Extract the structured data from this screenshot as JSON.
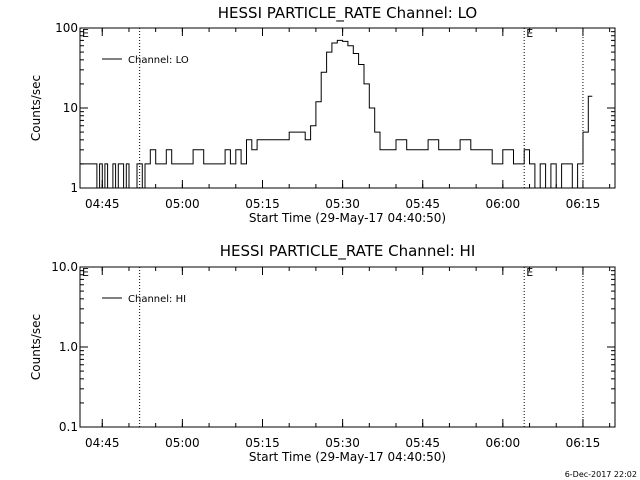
{
  "chart_data": [
    {
      "type": "line",
      "title": "HESSI PARTICLE_RATE Channel: LO",
      "xlabel": "Start Time (29-May-17 04:40:50)",
      "ylabel": "Counts/sec",
      "yscale": "log",
      "ylim": [
        1,
        100
      ],
      "ytick_labels": [
        "1",
        "10",
        "100"
      ],
      "ytick_values": [
        1,
        10,
        100
      ],
      "xlim": [
        "04:40:50",
        "06:21:00"
      ],
      "xtick_labels": [
        "04:45",
        "05:00",
        "05:15",
        "05:30",
        "05:45",
        "06:00",
        "06:15"
      ],
      "xtick_values": [
        "04:45",
        "05:00",
        "05:15",
        "05:30",
        "05:45",
        "06:00",
        "06:15"
      ],
      "event_lines": [
        {
          "time": "04:52",
          "label": ""
        },
        {
          "time": "06:04",
          "label": "E"
        },
        {
          "time": "06:15",
          "label": ""
        }
      ],
      "corner_label": "E",
      "legend_position": "top-left",
      "series": [
        {
          "name": "Channel: LO",
          "x": [
            "04:40:50",
            "04:42:00",
            "04:43:00",
            "04:44:00",
            "04:44:30",
            "04:45:00",
            "04:45:30",
            "04:46:00",
            "04:46:30",
            "04:47:00",
            "04:47:30",
            "04:48:00",
            "04:49:00",
            "04:49:30",
            "04:50:00",
            "04:51:00",
            "04:51:30",
            "04:52:30",
            "04:53:00",
            "04:54:00",
            "04:55:00",
            "04:56:00",
            "04:57:00",
            "04:58:00",
            "04:59:00",
            "05:00:00",
            "05:02:00",
            "05:04:00",
            "05:06:00",
            "05:08:00",
            "05:09:00",
            "05:10:00",
            "05:11:00",
            "05:12:00",
            "05:13:00",
            "05:14:00",
            "05:15:00",
            "05:16:00",
            "05:18:00",
            "05:20:00",
            "05:22:00",
            "05:23:00",
            "05:24:00",
            "05:25:00",
            "05:26:00",
            "05:27:00",
            "05:28:00",
            "05:29:00",
            "05:30:00",
            "05:31:00",
            "05:32:00",
            "05:33:00",
            "05:34:00",
            "05:35:00",
            "05:36:00",
            "05:37:00",
            "05:38:00",
            "05:40:00",
            "05:42:00",
            "05:44:00",
            "05:46:00",
            "05:48:00",
            "05:50:00",
            "05:52:00",
            "05:54:00",
            "05:56:00",
            "05:58:00",
            "06:00:00",
            "06:02:00",
            "06:04:00",
            "06:05:00",
            "06:06:00",
            "06:07:00",
            "06:08:00",
            "06:09:00",
            "06:10:00",
            "06:11:00",
            "06:12:00",
            "06:13:00",
            "06:14:00",
            "06:15:00",
            "06:16:00"
          ],
          "values": [
            2,
            2,
            2,
            1,
            2,
            1,
            2,
            1,
            1,
            2,
            1,
            2,
            1,
            2,
            1,
            1,
            2,
            1,
            2,
            3,
            2,
            2,
            3,
            2,
            2,
            2,
            3,
            2,
            2,
            3,
            2,
            3,
            2,
            4,
            3,
            4,
            4,
            4,
            4,
            5,
            5,
            4,
            6,
            12,
            28,
            50,
            65,
            70,
            68,
            60,
            48,
            35,
            20,
            10,
            5,
            3,
            3,
            4,
            3,
            3,
            4,
            3,
            3,
            4,
            3,
            3,
            2,
            3,
            2,
            3,
            2,
            1,
            2,
            1,
            2,
            1,
            2,
            2,
            1,
            2,
            5,
            14
          ]
        }
      ]
    },
    {
      "type": "line",
      "title": "HESSI PARTICLE_RATE Channel: HI",
      "xlabel": "Start Time (29-May-17 04:40:50)",
      "ylabel": "Counts/sec",
      "yscale": "log",
      "ylim": [
        0.1,
        10
      ],
      "ytick_labels": [
        "0.1",
        "1.0",
        "10.0"
      ],
      "ytick_values": [
        0.1,
        1,
        10
      ],
      "xlim": [
        "04:40:50",
        "06:21:00"
      ],
      "xtick_labels": [
        "04:45",
        "05:00",
        "05:15",
        "05:30",
        "05:45",
        "06:00",
        "06:15"
      ],
      "xtick_values": [
        "04:45",
        "05:00",
        "05:15",
        "05:30",
        "05:45",
        "06:00",
        "06:15"
      ],
      "event_lines": [
        {
          "time": "04:52",
          "label": ""
        },
        {
          "time": "06:04",
          "label": "E"
        },
        {
          "time": "06:15",
          "label": ""
        }
      ],
      "corner_label": "E",
      "legend_position": "top-left",
      "series": [
        {
          "name": "Channel: HI",
          "x": [],
          "values": []
        }
      ]
    }
  ],
  "footer": {
    "timestamp": "6-Dec-2017 22:02"
  }
}
